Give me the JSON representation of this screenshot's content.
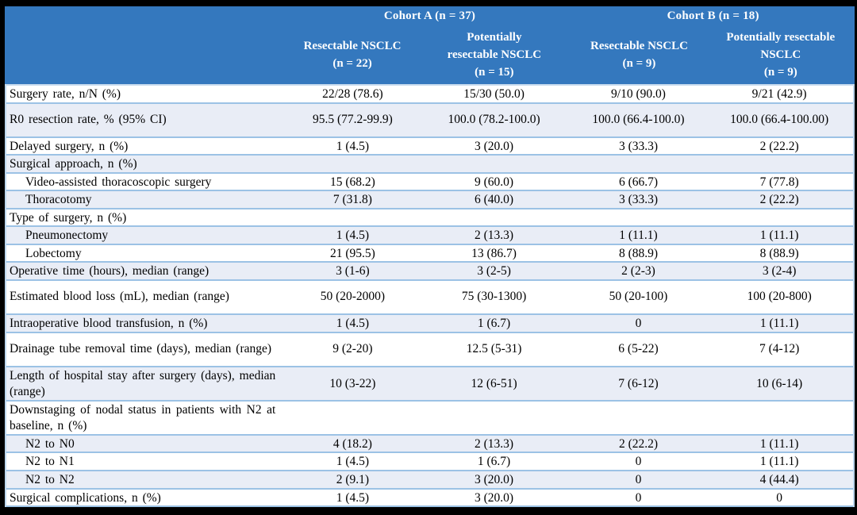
{
  "colors": {
    "header-bg": "#3478BE",
    "alt-bg": "#E9EDF6",
    "row-border": "#9CC2E5",
    "header-divider": "#C9DCEF",
    "side-border": "#BDD7EE",
    "frame": "#000000",
    "header-text": "#FFFFFF",
    "body-text": "#000000"
  },
  "header": {
    "cohort_a": "Cohort A (n = 37)",
    "cohort_b": "Cohort B (n = 18)",
    "subcolumns": [
      "Resectable NSCLC\n(n = 22)",
      "Potentially\nresectable NSCLC\n(n = 15)",
      "Resectable NSCLC\n(n = 9)",
      "Potentially resectable\nNSCLC\n(n = 9)"
    ]
  },
  "rows": [
    {
      "label": "Surgery rate, n/N (%)",
      "values": [
        "22/28 (78.6)",
        "15/30 (50.0)",
        "9/10 (90.0)",
        "9/21 (42.9)"
      ]
    },
    {
      "label": "R0 resection rate, % (95% CI)",
      "tall": true,
      "values": [
        "95.5 (77.2-99.9)",
        "100.0 (78.2-100.0)",
        "100.0 (66.4-100.0)",
        "100.0 (66.4-100.00)"
      ]
    },
    {
      "label": "Delayed surgery, n (%)",
      "values": [
        "1 (4.5)",
        "3 (20.0)",
        "3 (33.3)",
        "2 (22.2)"
      ]
    },
    {
      "label": "Surgical approach, n (%)"
    },
    {
      "label": "Video-assisted thoracoscopic surgery",
      "indent": true,
      "values": [
        "15 (68.2)",
        "9 (60.0)",
        "6 (66.7)",
        "7 (77.8)"
      ]
    },
    {
      "label": "Thoracotomy",
      "indent": true,
      "values": [
        "7 (31.8)",
        "6 (40.0)",
        "3 (33.3)",
        "2 (22.2)"
      ]
    },
    {
      "label": "Type of surgery, n (%)"
    },
    {
      "label": "Pneumonectomy",
      "indent": true,
      "values": [
        "1 (4.5)",
        "2 (13.3)",
        "1 (11.1)",
        "1 (11.1)"
      ]
    },
    {
      "label": "Lobectomy",
      "indent": true,
      "values": [
        "21 (95.5)",
        "13 (86.7)",
        "8 (88.9)",
        "8 (88.9)"
      ]
    },
    {
      "label": "Operative time (hours), median (range)",
      "values": [
        "3 (1-6)",
        "3 (2-5)",
        "2 (2-3)",
        "3 (2-4)"
      ]
    },
    {
      "label": "Estimated blood loss (mL), median (range)",
      "tall": true,
      "values": [
        "50 (20-2000)",
        "75 (30-1300)",
        "50 (20-100)",
        "100 (20-800)"
      ]
    },
    {
      "label": "Intraoperative blood transfusion, n (%)",
      "values": [
        "1 (4.5)",
        "1 (6.7)",
        "0",
        "1 (11.1)"
      ]
    },
    {
      "label": "Drainage tube removal time (days), median (range)",
      "tall": true,
      "values": [
        "9 (2-20)",
        "12.5 (5-31)",
        "6 (5-22)",
        "7 (4-12)"
      ]
    },
    {
      "label": "Length of hospital stay after surgery (days), median (range)",
      "tall": true,
      "values": [
        "10 (3-22)",
        "12 (6-51)",
        "7 (6-12)",
        "10 (6-14)"
      ]
    },
    {
      "label": "Downstaging of nodal status in patients with N2 at baseline, n (%)",
      "tall": true
    },
    {
      "label": "N2 to N0",
      "indent": true,
      "values": [
        "4 (18.2)",
        "2 (13.3)",
        "2 (22.2)",
        "1 (11.1)"
      ]
    },
    {
      "label": "N2 to N1",
      "indent": true,
      "values": [
        "1 (4.5)",
        "1 (6.7)",
        "0",
        "1 (11.1)"
      ]
    },
    {
      "label": "N2 to N2",
      "indent": true,
      "values": [
        "2 (9.1)",
        "3 (20.0)",
        "0",
        "4 (44.4)"
      ]
    },
    {
      "label": "Surgical complications, n (%)",
      "values": [
        "1 (4.5)",
        "3 (20.0)",
        "0",
        "0"
      ]
    }
  ]
}
